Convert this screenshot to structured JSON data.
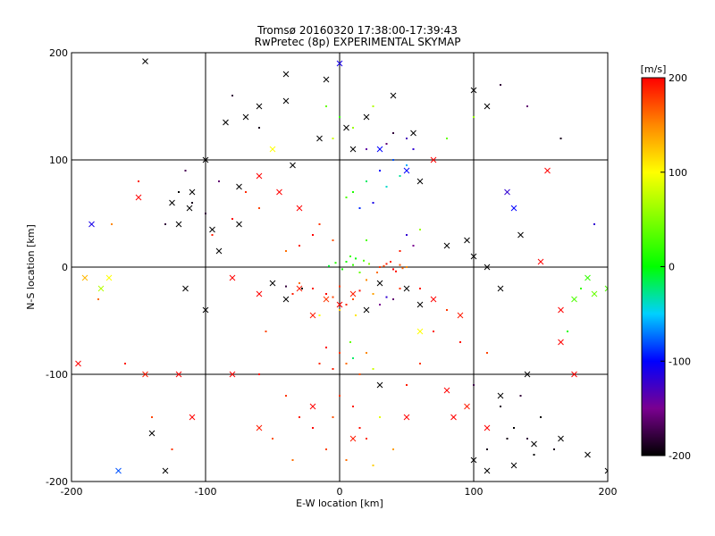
{
  "chart_data": {
    "type": "scatter",
    "title": "Tromsø 20160320 17:38:00-17:39:43",
    "subtitle": "RwPretec (8p) EXPERIMENTAL SKYMAP",
    "xlabel": "E-W location [km]",
    "ylabel": "N-S location [km]",
    "xlim": [
      -200,
      200
    ],
    "ylim": [
      -200,
      200
    ],
    "x_ticks": [
      "-200",
      "-100",
      "0",
      "100",
      "200"
    ],
    "y_ticks": [
      "-200",
      "-100",
      "0",
      "100",
      "200"
    ],
    "grid": true,
    "colorbar": {
      "label": "[m/s]",
      "range": [
        -200,
        200
      ],
      "ticks": [
        "-200",
        "-100",
        "0",
        "100",
        "200"
      ],
      "colormap": "rainbow (black-purple-blue-cyan-green-yellow-red)",
      "placement": "right"
    },
    "series": [
      {
        "marker": "dot",
        "points": [
          [
            5,
            5,
            10
          ],
          [
            10,
            2,
            20
          ],
          [
            12,
            8,
            0
          ],
          [
            -3,
            4,
            15
          ],
          [
            18,
            6,
            30
          ],
          [
            2,
            -2,
            5
          ],
          [
            8,
            10,
            25
          ],
          [
            15,
            -5,
            40
          ],
          [
            -8,
            1,
            -10
          ],
          [
            22,
            3,
            50
          ],
          [
            30,
            0,
            180
          ],
          [
            35,
            3,
            190
          ],
          [
            40,
            -2,
            200
          ],
          [
            45,
            2,
            170
          ],
          [
            28,
            -5,
            160
          ],
          [
            50,
            0,
            150
          ],
          [
            38,
            5,
            185
          ],
          [
            42,
            -4,
            195
          ],
          [
            33,
            1,
            175
          ],
          [
            47,
            -1,
            165
          ],
          [
            -20,
            -20,
            190
          ],
          [
            -10,
            -25,
            200
          ],
          [
            0,
            -18,
            180
          ],
          [
            10,
            -30,
            170
          ],
          [
            -30,
            -15,
            160
          ],
          [
            5,
            -35,
            185
          ],
          [
            15,
            -22,
            195
          ],
          [
            -5,
            -28,
            175
          ],
          [
            20,
            -12,
            150
          ],
          [
            25,
            -25,
            140
          ],
          [
            -35,
            -25,
            190
          ],
          [
            30,
            -35,
            -150
          ],
          [
            35,
            -28,
            -120
          ],
          [
            40,
            -30,
            -160
          ],
          [
            -40,
            -18,
            -180
          ],
          [
            -28,
            -20,
            -200
          ],
          [
            0,
            -40,
            120
          ],
          [
            -15,
            -45,
            100
          ],
          [
            12,
            -45,
            110
          ],
          [
            45,
            -20,
            180
          ],
          [
            10,
            70,
            10
          ],
          [
            20,
            80,
            -20
          ],
          [
            30,
            90,
            -100
          ],
          [
            40,
            100,
            -80
          ],
          [
            50,
            95,
            -60
          ],
          [
            25,
            60,
            -110
          ],
          [
            15,
            55,
            -90
          ],
          [
            35,
            75,
            -40
          ],
          [
            45,
            85,
            -30
          ],
          [
            5,
            65,
            30
          ],
          [
            20,
            110,
            -140
          ],
          [
            35,
            115,
            -160
          ],
          [
            50,
            120,
            -130
          ],
          [
            10,
            130,
            60
          ],
          [
            0,
            140,
            20
          ],
          [
            -10,
            150,
            40
          ],
          [
            -5,
            120,
            80
          ],
          [
            25,
            150,
            70
          ],
          [
            40,
            125,
            -180
          ],
          [
            55,
            110,
            -120
          ],
          [
            -30,
            20,
            190
          ],
          [
            -20,
            30,
            200
          ],
          [
            -40,
            15,
            160
          ],
          [
            -15,
            40,
            180
          ],
          [
            -5,
            25,
            170
          ],
          [
            50,
            30,
            -120
          ],
          [
            45,
            15,
            190
          ],
          [
            55,
            20,
            -150
          ],
          [
            20,
            25,
            30
          ],
          [
            60,
            35,
            60
          ],
          [
            0,
            -80,
            180
          ],
          [
            5,
            -90,
            160
          ],
          [
            10,
            -85,
            -20
          ],
          [
            -5,
            -95,
            190
          ],
          [
            15,
            -100,
            170
          ],
          [
            20,
            -80,
            150
          ],
          [
            -10,
            -75,
            200
          ],
          [
            25,
            -95,
            80
          ],
          [
            8,
            -70,
            40
          ],
          [
            -15,
            -90,
            185
          ],
          [
            0,
            -120,
            180
          ],
          [
            10,
            -130,
            190
          ],
          [
            -5,
            -140,
            170
          ],
          [
            15,
            -150,
            195
          ],
          [
            20,
            -160,
            185
          ],
          [
            -10,
            -170,
            175
          ],
          [
            5,
            -180,
            160
          ],
          [
            -20,
            -150,
            200
          ],
          [
            25,
            -185,
            120
          ],
          [
            30,
            -140,
            90
          ],
          [
            -40,
            -120,
            180
          ],
          [
            -30,
            -140,
            190
          ],
          [
            -50,
            -160,
            170
          ],
          [
            -35,
            -180,
            160
          ],
          [
            40,
            -170,
            140
          ],
          [
            50,
            -110,
            190
          ],
          [
            60,
            -90,
            180
          ],
          [
            -60,
            -100,
            195
          ],
          [
            -55,
            -60,
            175
          ],
          [
            70,
            -60,
            190
          ],
          [
            120,
            -130,
            -190
          ],
          [
            130,
            -150,
            -200
          ],
          [
            140,
            -160,
            -180
          ],
          [
            110,
            -170,
            -190
          ],
          [
            150,
            -140,
            -200
          ],
          [
            135,
            -120,
            -180
          ],
          [
            160,
            -170,
            -190
          ],
          [
            100,
            -110,
            -175
          ],
          [
            125,
            -160,
            -195
          ],
          [
            145,
            -175,
            -200
          ],
          [
            -110,
            60,
            -190
          ],
          [
            -120,
            70,
            -200
          ],
          [
            -100,
            50,
            -180
          ],
          [
            -90,
            80,
            -160
          ],
          [
            -130,
            40,
            -180
          ],
          [
            -115,
            90,
            -170
          ],
          [
            -80,
            45,
            200
          ],
          [
            -70,
            70,
            185
          ],
          [
            -60,
            55,
            175
          ],
          [
            -95,
            30,
            190
          ],
          [
            -150,
            80,
            190
          ],
          [
            -170,
            40,
            150
          ],
          [
            -180,
            -30,
            160
          ],
          [
            -160,
            -90,
            190
          ],
          [
            -140,
            -140,
            175
          ],
          [
            -125,
            -170,
            180
          ],
          [
            180,
            -20,
            20
          ],
          [
            170,
            -60,
            10
          ],
          [
            190,
            40,
            -120
          ],
          [
            165,
            120,
            -190
          ],
          [
            80,
            120,
            40
          ],
          [
            100,
            140,
            60
          ],
          [
            120,
            170,
            -180
          ],
          [
            140,
            150,
            -160
          ],
          [
            60,
            -20,
            190
          ],
          [
            80,
            -40,
            180
          ],
          [
            90,
            -70,
            195
          ],
          [
            110,
            -80,
            175
          ],
          [
            -60,
            130,
            -190
          ],
          [
            -80,
            160,
            -180
          ]
        ]
      },
      {
        "marker": "x",
        "points": [
          [
            -145,
            192,
            -200
          ],
          [
            0,
            190,
            -110
          ],
          [
            -10,
            175,
            -200
          ],
          [
            100,
            165,
            -200
          ],
          [
            110,
            150,
            -200
          ],
          [
            -60,
            150,
            -200
          ],
          [
            -40,
            155,
            -200
          ],
          [
            -70,
            140,
            -200
          ],
          [
            -85,
            135,
            -200
          ],
          [
            -100,
            100,
            -200
          ],
          [
            -110,
            70,
            -200
          ],
          [
            -112,
            55,
            -200
          ],
          [
            -120,
            40,
            -200
          ],
          [
            -95,
            35,
            -200
          ],
          [
            -150,
            65,
            200
          ],
          [
            -125,
            60,
            -200
          ],
          [
            -75,
            40,
            -200
          ],
          [
            -90,
            15,
            -200
          ],
          [
            -185,
            40,
            -110
          ],
          [
            -172,
            -10,
            100
          ],
          [
            -178,
            -20,
            70
          ],
          [
            -115,
            -20,
            -200
          ],
          [
            -100,
            -40,
            -200
          ],
          [
            -80,
            -10,
            200
          ],
          [
            -60,
            -25,
            200
          ],
          [
            -50,
            -15,
            -200
          ],
          [
            -40,
            -30,
            -200
          ],
          [
            -30,
            -20,
            190
          ],
          [
            -20,
            -45,
            190
          ],
          [
            -10,
            -30,
            180
          ],
          [
            0,
            -35,
            200
          ],
          [
            10,
            -25,
            190
          ],
          [
            20,
            -40,
            -200
          ],
          [
            30,
            -15,
            -200
          ],
          [
            50,
            -20,
            -200
          ],
          [
            60,
            -35,
            -200
          ],
          [
            70,
            -30,
            200
          ],
          [
            90,
            -45,
            190
          ],
          [
            80,
            20,
            -200
          ],
          [
            95,
            25,
            -200
          ],
          [
            100,
            10,
            -200
          ],
          [
            110,
            0,
            -200
          ],
          [
            120,
            -20,
            -200
          ],
          [
            135,
            30,
            -200
          ],
          [
            150,
            5,
            200
          ],
          [
            185,
            -10,
            20
          ],
          [
            190,
            -25,
            40
          ],
          [
            175,
            -30,
            30
          ],
          [
            200,
            -20,
            30
          ],
          [
            165,
            -40,
            200
          ],
          [
            -120,
            -100,
            200
          ],
          [
            -145,
            -100,
            190
          ],
          [
            -195,
            -90,
            200
          ],
          [
            -110,
            -140,
            200
          ],
          [
            -80,
            -100,
            200
          ],
          [
            -60,
            -150,
            190
          ],
          [
            -20,
            -130,
            200
          ],
          [
            10,
            -160,
            190
          ],
          [
            30,
            -110,
            -200
          ],
          [
            50,
            -140,
            200
          ],
          [
            80,
            -115,
            200
          ],
          [
            95,
            -130,
            190
          ],
          [
            110,
            -150,
            200
          ],
          [
            100,
            -180,
            -200
          ],
          [
            110,
            -190,
            -200
          ],
          [
            130,
            -185,
            -200
          ],
          [
            145,
            -165,
            -200
          ],
          [
            165,
            -160,
            -200
          ],
          [
            185,
            -175,
            -200
          ],
          [
            200,
            -190,
            -200
          ],
          [
            -140,
            -155,
            -200
          ],
          [
            -165,
            -190,
            -80
          ],
          [
            -130,
            -190,
            -200
          ],
          [
            40,
            160,
            -200
          ],
          [
            55,
            125,
            -200
          ],
          [
            30,
            110,
            -100
          ],
          [
            10,
            110,
            -200
          ],
          [
            50,
            90,
            -100
          ],
          [
            60,
            80,
            -200
          ],
          [
            70,
            100,
            200
          ],
          [
            -40,
            180,
            -200
          ],
          [
            20,
            140,
            -200
          ],
          [
            5,
            130,
            -200
          ],
          [
            -15,
            120,
            -200
          ],
          [
            -50,
            110,
            100
          ],
          [
            -35,
            95,
            -200
          ],
          [
            -60,
            85,
            200
          ],
          [
            -45,
            70,
            200
          ],
          [
            -30,
            55,
            200
          ],
          [
            -75,
            75,
            -200
          ],
          [
            165,
            -70,
            200
          ],
          [
            175,
            -100,
            200
          ],
          [
            85,
            -140,
            200
          ],
          [
            120,
            -120,
            -200
          ],
          [
            140,
            -100,
            -200
          ],
          [
            -190,
            -10,
            130
          ],
          [
            125,
            70,
            -120
          ],
          [
            130,
            55,
            -100
          ],
          [
            155,
            90,
            200
          ],
          [
            60,
            -60,
            100
          ]
        ]
      }
    ]
  }
}
